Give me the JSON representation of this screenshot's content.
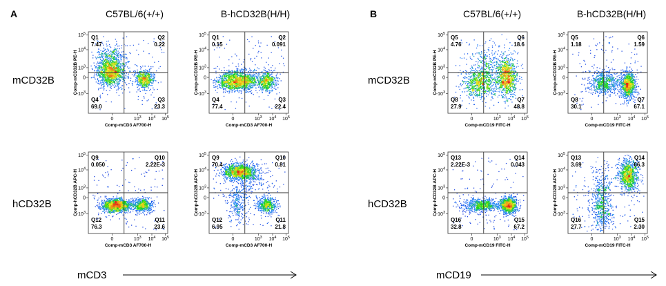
{
  "panels": [
    {
      "letter": "A",
      "columns": [
        "C57BL/6(+/+)",
        "B-hCD32B(H/H)"
      ],
      "rows": [
        "mCD32B",
        "hCD32B"
      ],
      "x_axis_label": "mCD3"
    },
    {
      "letter": "B",
      "columns": [
        "C57BL/6(+/+)",
        "B-hCD32B(H/H)"
      ],
      "rows": [
        "mCD32B",
        "hCD32B"
      ],
      "x_axis_label": "mCD19"
    }
  ],
  "chart_data": [
    {
      "type": "scatter",
      "panel": "A",
      "row": "mCD32B",
      "column": "C57BL/6(+/+)",
      "xlabel": "Comp-mCD3 AF700-H",
      "ylabel": "Comp-mCD32B PE-H",
      "quadrants": [
        {
          "name": "Q1",
          "value": "7.47",
          "pos": "top-left"
        },
        {
          "name": "Q2",
          "value": "0.22",
          "pos": "top-right"
        },
        {
          "name": "Q3",
          "value": "23.3",
          "pos": "bottom-right"
        },
        {
          "name": "Q4",
          "value": "69.0",
          "pos": "bottom-left"
        }
      ],
      "populations": [
        {
          "x": 0.28,
          "y": 0.52,
          "sx": 0.09,
          "sy": 0.09,
          "n": 1300
        },
        {
          "x": 0.7,
          "y": 0.42,
          "sx": 0.06,
          "sy": 0.06,
          "n": 520
        },
        {
          "x": 0.25,
          "y": 0.72,
          "sx": 0.09,
          "sy": 0.05,
          "n": 160
        }
      ]
    },
    {
      "type": "scatter",
      "panel": "A",
      "row": "mCD32B",
      "column": "B-hCD32B(H/H)",
      "xlabel": "Comp-mCD3 AF700-H",
      "ylabel": "Comp-mCD32B PE-H",
      "quadrants": [
        {
          "name": "Q1",
          "value": "0.15",
          "pos": "top-left"
        },
        {
          "name": "Q2",
          "value": "0.091",
          "pos": "top-right"
        },
        {
          "name": "Q3",
          "value": "22.4",
          "pos": "bottom-right"
        },
        {
          "name": "Q4",
          "value": "77.4",
          "pos": "bottom-left"
        }
      ],
      "populations": [
        {
          "x": 0.35,
          "y": 0.4,
          "sx": 0.13,
          "sy": 0.06,
          "n": 1400
        },
        {
          "x": 0.72,
          "y": 0.4,
          "sx": 0.06,
          "sy": 0.06,
          "n": 480
        }
      ]
    },
    {
      "type": "scatter",
      "panel": "A",
      "row": "hCD32B",
      "column": "C57BL/6(+/+)",
      "xlabel": "Comp-mCD3 AF700-H",
      "ylabel": "Comp-hCD32B APC-H",
      "quadrants": [
        {
          "name": "Q9",
          "value": "0.050",
          "pos": "top-left"
        },
        {
          "name": "Q10",
          "value": "2.22E-3",
          "pos": "top-right"
        },
        {
          "name": "Q11",
          "value": "23.6",
          "pos": "bottom-right"
        },
        {
          "name": "Q12",
          "value": "76.3",
          "pos": "bottom-left"
        }
      ],
      "populations": [
        {
          "x": 0.35,
          "y": 0.35,
          "sx": 0.09,
          "sy": 0.04,
          "n": 1300
        },
        {
          "x": 0.68,
          "y": 0.35,
          "sx": 0.06,
          "sy": 0.04,
          "n": 520
        }
      ]
    },
    {
      "type": "scatter",
      "panel": "A",
      "row": "hCD32B",
      "column": "B-hCD32B(H/H)",
      "xlabel": "Comp-mCD3 AF700-H",
      "ylabel": "Comp-hCD32B APC-H",
      "quadrants": [
        {
          "name": "Q9",
          "value": "70.4",
          "pos": "top-left"
        },
        {
          "name": "Q10",
          "value": "0.81",
          "pos": "top-right"
        },
        {
          "name": "Q11",
          "value": "21.8",
          "pos": "bottom-right"
        },
        {
          "name": "Q12",
          "value": "6.95",
          "pos": "bottom-left"
        }
      ],
      "populations": [
        {
          "x": 0.38,
          "y": 0.76,
          "sx": 0.11,
          "sy": 0.05,
          "n": 1200
        },
        {
          "x": 0.72,
          "y": 0.35,
          "sx": 0.06,
          "sy": 0.05,
          "n": 460
        },
        {
          "x": 0.35,
          "y": 0.38,
          "sx": 0.06,
          "sy": 0.12,
          "n": 260
        },
        {
          "x": 0.55,
          "y": 0.62,
          "sx": 0.12,
          "sy": 0.12,
          "n": 140
        }
      ]
    },
    {
      "type": "scatter",
      "panel": "B",
      "row": "mCD32B",
      "column": "C57BL/6(+/+)",
      "xlabel": "Comp-mCD19 FITC-H",
      "ylabel": "Comp-mCD32B PE-H",
      "quadrants": [
        {
          "name": "Q5",
          "value": "4.76",
          "pos": "top-left"
        },
        {
          "name": "Q6",
          "value": "18.6",
          "pos": "top-right"
        },
        {
          "name": "Q7",
          "value": "48.8",
          "pos": "bottom-right"
        },
        {
          "name": "Q8",
          "value": "27.9",
          "pos": "bottom-left"
        }
      ],
      "populations": [
        {
          "x": 0.4,
          "y": 0.38,
          "sx": 0.1,
          "sy": 0.09,
          "n": 700
        },
        {
          "x": 0.74,
          "y": 0.44,
          "sx": 0.06,
          "sy": 0.12,
          "n": 900
        },
        {
          "x": 0.5,
          "y": 0.62,
          "sx": 0.12,
          "sy": 0.1,
          "n": 220
        }
      ]
    },
    {
      "type": "scatter",
      "panel": "B",
      "row": "mCD32B",
      "column": "B-hCD32B(H/H)",
      "xlabel": "Comp-mCD19 FITC-H",
      "ylabel": "Comp-mCD32B PE-H",
      "quadrants": [
        {
          "name": "Q5",
          "value": "1.18",
          "pos": "top-left"
        },
        {
          "name": "Q6",
          "value": "1.59",
          "pos": "top-right"
        },
        {
          "name": "Q7",
          "value": "67.1",
          "pos": "bottom-right"
        },
        {
          "name": "Q8",
          "value": "30.1",
          "pos": "bottom-left"
        }
      ],
      "populations": [
        {
          "x": 0.45,
          "y": 0.38,
          "sx": 0.09,
          "sy": 0.07,
          "n": 650
        },
        {
          "x": 0.75,
          "y": 0.35,
          "sx": 0.05,
          "sy": 0.08,
          "n": 900
        }
      ]
    },
    {
      "type": "scatter",
      "panel": "B",
      "row": "hCD32B",
      "column": "C57BL/6(+/+)",
      "xlabel": "Comp-mCD19 FITC-H",
      "ylabel": "Comp-hCD32B APC-H",
      "quadrants": [
        {
          "name": "Q13",
          "value": "2.22E-3",
          "pos": "top-left"
        },
        {
          "name": "Q14",
          "value": "0.043",
          "pos": "top-right"
        },
        {
          "name": "Q15",
          "value": "67.2",
          "pos": "bottom-right"
        },
        {
          "name": "Q16",
          "value": "32.8",
          "pos": "bottom-left"
        }
      ],
      "populations": [
        {
          "x": 0.42,
          "y": 0.35,
          "sx": 0.12,
          "sy": 0.04,
          "n": 700
        },
        {
          "x": 0.76,
          "y": 0.35,
          "sx": 0.05,
          "sy": 0.05,
          "n": 900
        }
      ]
    },
    {
      "type": "scatter",
      "panel": "B",
      "row": "hCD32B",
      "column": "B-hCD32B(H/H)",
      "xlabel": "Comp-mCD19 FITC-H",
      "ylabel": "Comp-hCD32B APC-H",
      "quadrants": [
        {
          "name": "Q13",
          "value": "3.69",
          "pos": "top-left"
        },
        {
          "name": "Q14",
          "value": "66.3",
          "pos": "top-right"
        },
        {
          "name": "Q15",
          "value": "2.30",
          "pos": "bottom-right"
        },
        {
          "name": "Q16",
          "value": "27.7",
          "pos": "bottom-left"
        }
      ],
      "populations": [
        {
          "x": 0.76,
          "y": 0.72,
          "sx": 0.06,
          "sy": 0.1,
          "n": 900
        },
        {
          "x": 0.42,
          "y": 0.38,
          "sx": 0.07,
          "sy": 0.2,
          "n": 650
        }
      ]
    }
  ],
  "axis": {
    "x_ticks": [
      "0",
      "10",
      "10",
      "10"
    ],
    "x_tick_exps": [
      "",
      "3",
      "4",
      "5"
    ],
    "y_ticks_top": [
      "10",
      "10",
      "10",
      "0",
      "-10"
    ],
    "y_exps_top": [
      "5",
      "4",
      "3",
      "",
      "3"
    ],
    "colors": {
      "low": "#1e1ecf",
      "mid": "#19d619",
      "high": "#f0e21a",
      "max": "#e8261b"
    }
  }
}
